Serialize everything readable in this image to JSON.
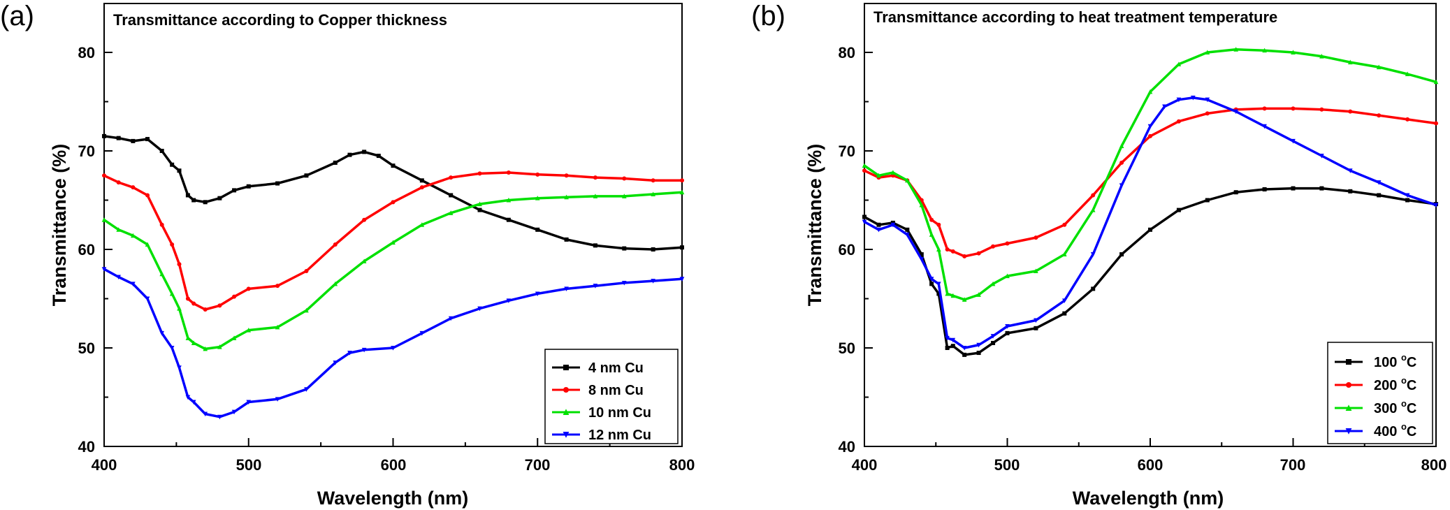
{
  "figure": {
    "panels": [
      {
        "label": "(a)",
        "title": "Transmittance according to Copper thickness",
        "xlabel": "Wavelength (nm)",
        "ylabel": "Transmittance (%)",
        "x_ticks": [
          "400",
          "500",
          "600",
          "700",
          "800"
        ],
        "y_ticks": [
          "40",
          "50",
          "60",
          "70",
          "80"
        ],
        "legend_entries": [
          {
            "text": "4 nm Cu",
            "sup": ""
          },
          {
            "text": "8 nm Cu",
            "sup": ""
          },
          {
            "text": "10 nm Cu",
            "sup": ""
          },
          {
            "text": "12 nm Cu",
            "sup": ""
          }
        ]
      },
      {
        "label": "(b)",
        "title": "Transmittance according to heat treatment temperature",
        "xlabel": "Wavelength (nm)",
        "ylabel": "Transmittance (%)",
        "x_ticks": [
          "400",
          "500",
          "600",
          "700",
          "800"
        ],
        "y_ticks": [
          "40",
          "50",
          "60",
          "70",
          "80"
        ],
        "legend_entries": [
          {
            "text": "100 ",
            "sup": "o",
            "after": "C"
          },
          {
            "text": "200 ",
            "sup": "o",
            "after": "C"
          },
          {
            "text": "300 ",
            "sup": "o",
            "after": "C"
          },
          {
            "text": "400 ",
            "sup": "o",
            "after": "C"
          }
        ]
      }
    ]
  },
  "chart_data": [
    {
      "type": "line",
      "title": "Transmittance according to Copper thickness",
      "xlabel": "Wavelength (nm)",
      "ylabel": "Transmittance (%)",
      "xlim": [
        400,
        800
      ],
      "ylim": [
        40,
        85
      ],
      "grid": false,
      "legend": "bottom-right",
      "series": [
        {
          "name": "4 nm Cu",
          "color": "#000000",
          "marker": "square",
          "x": [
            400,
            410,
            420,
            430,
            440,
            447,
            452,
            458,
            462,
            470,
            480,
            490,
            500,
            520,
            540,
            560,
            570,
            580,
            590,
            600,
            620,
            640,
            660,
            680,
            700,
            720,
            740,
            760,
            780,
            800
          ],
          "y": [
            71.5,
            71.3,
            71.0,
            71.2,
            70.0,
            68.6,
            68.0,
            65.5,
            65.0,
            64.8,
            65.2,
            66.0,
            66.4,
            66.7,
            67.5,
            68.8,
            69.6,
            69.9,
            69.5,
            68.5,
            67.0,
            65.5,
            64.0,
            63.0,
            62.0,
            61.0,
            60.4,
            60.1,
            60.0,
            60.2
          ]
        },
        {
          "name": "8 nm Cu",
          "color": "#ff0000",
          "marker": "circle",
          "x": [
            400,
            410,
            420,
            430,
            440,
            447,
            452,
            458,
            462,
            470,
            480,
            490,
            500,
            520,
            540,
            560,
            580,
            600,
            620,
            640,
            660,
            680,
            700,
            720,
            740,
            760,
            780,
            800
          ],
          "y": [
            67.5,
            66.8,
            66.3,
            65.5,
            62.5,
            60.5,
            58.5,
            55.0,
            54.5,
            53.9,
            54.3,
            55.2,
            56.0,
            56.3,
            57.8,
            60.5,
            63.0,
            64.8,
            66.3,
            67.3,
            67.7,
            67.8,
            67.6,
            67.5,
            67.3,
            67.2,
            67.0,
            67.0
          ]
        },
        {
          "name": "10 nm Cu",
          "color": "#00e000",
          "marker": "triangle-up",
          "x": [
            400,
            410,
            420,
            430,
            440,
            447,
            452,
            458,
            462,
            470,
            480,
            490,
            500,
            520,
            540,
            560,
            580,
            600,
            620,
            640,
            660,
            680,
            700,
            720,
            740,
            760,
            780,
            800
          ],
          "y": [
            63.0,
            62.0,
            61.4,
            60.5,
            57.5,
            55.5,
            54.0,
            51.0,
            50.5,
            49.9,
            50.1,
            51.0,
            51.8,
            52.1,
            53.8,
            56.5,
            58.8,
            60.7,
            62.5,
            63.7,
            64.6,
            65.0,
            65.2,
            65.3,
            65.4,
            65.4,
            65.6,
            65.8
          ]
        },
        {
          "name": "12 nm Cu",
          "color": "#0000ff",
          "marker": "triangle-down",
          "x": [
            400,
            410,
            420,
            430,
            440,
            447,
            452,
            458,
            462,
            470,
            480,
            490,
            500,
            520,
            540,
            560,
            570,
            580,
            600,
            620,
            640,
            660,
            680,
            700,
            720,
            740,
            760,
            780,
            800
          ],
          "y": [
            58.0,
            57.2,
            56.5,
            55.0,
            51.5,
            50.0,
            48.0,
            45.0,
            44.5,
            43.3,
            43.0,
            43.5,
            44.5,
            44.8,
            45.8,
            48.5,
            49.5,
            49.8,
            50.0,
            51.5,
            53.0,
            54.0,
            54.8,
            55.5,
            56.0,
            56.3,
            56.6,
            56.8,
            57.0
          ]
        }
      ]
    },
    {
      "type": "line",
      "title": "Transmittance according to heat treatment temperature",
      "xlabel": "Wavelength (nm)",
      "ylabel": "Transmittance (%)",
      "xlim": [
        400,
        800
      ],
      "ylim": [
        40,
        85
      ],
      "grid": false,
      "legend": "bottom-right",
      "series": [
        {
          "name": "100 °C",
          "color": "#000000",
          "marker": "square",
          "x": [
            400,
            410,
            420,
            430,
            440,
            447,
            452,
            458,
            462,
            470,
            480,
            490,
            500,
            520,
            540,
            560,
            580,
            600,
            620,
            640,
            660,
            680,
            700,
            720,
            740,
            760,
            780,
            800
          ],
          "y": [
            63.3,
            62.5,
            62.7,
            62.0,
            59.5,
            56.5,
            55.5,
            50.0,
            50.2,
            49.3,
            49.5,
            50.5,
            51.5,
            52.0,
            53.5,
            56.0,
            59.5,
            62.0,
            64.0,
            65.0,
            65.8,
            66.1,
            66.2,
            66.2,
            65.9,
            65.5,
            65.0,
            64.6
          ]
        },
        {
          "name": "200 °C",
          "color": "#ff0000",
          "marker": "circle",
          "x": [
            400,
            410,
            420,
            430,
            440,
            447,
            452,
            458,
            462,
            470,
            480,
            490,
            500,
            520,
            540,
            560,
            580,
            600,
            620,
            640,
            660,
            680,
            700,
            720,
            740,
            760,
            780,
            800
          ],
          "y": [
            68.0,
            67.3,
            67.5,
            67.0,
            65.0,
            63.0,
            62.5,
            60.0,
            59.8,
            59.3,
            59.6,
            60.3,
            60.6,
            61.2,
            62.5,
            65.5,
            68.8,
            71.5,
            73.0,
            73.8,
            74.2,
            74.3,
            74.3,
            74.2,
            74.0,
            73.6,
            73.2,
            72.8
          ]
        },
        {
          "name": "300 °C",
          "color": "#00e000",
          "marker": "triangle-up",
          "x": [
            400,
            410,
            420,
            430,
            440,
            447,
            452,
            458,
            462,
            470,
            480,
            490,
            500,
            520,
            540,
            560,
            580,
            600,
            620,
            640,
            660,
            680,
            700,
            720,
            740,
            760,
            780,
            800
          ],
          "y": [
            68.5,
            67.5,
            67.8,
            67.0,
            64.5,
            61.5,
            60.0,
            55.5,
            55.3,
            54.9,
            55.4,
            56.5,
            57.3,
            57.8,
            59.5,
            64.0,
            70.5,
            76.0,
            78.8,
            80.0,
            80.3,
            80.2,
            80.0,
            79.6,
            79.0,
            78.5,
            77.8,
            77.0
          ]
        },
        {
          "name": "400 °C",
          "color": "#0000ff",
          "marker": "triangle-down",
          "x": [
            400,
            410,
            420,
            430,
            440,
            447,
            452,
            458,
            462,
            470,
            480,
            490,
            500,
            520,
            540,
            560,
            580,
            600,
            610,
            620,
            630,
            640,
            660,
            680,
            700,
            720,
            740,
            760,
            780,
            800
          ],
          "y": [
            62.8,
            62.0,
            62.5,
            61.5,
            59.0,
            57.0,
            56.5,
            51.0,
            50.8,
            50.0,
            50.3,
            51.2,
            52.2,
            52.8,
            54.8,
            59.5,
            66.5,
            72.5,
            74.5,
            75.2,
            75.4,
            75.2,
            74.0,
            72.5,
            71.0,
            69.5,
            68.0,
            66.8,
            65.5,
            64.5
          ]
        }
      ]
    }
  ]
}
